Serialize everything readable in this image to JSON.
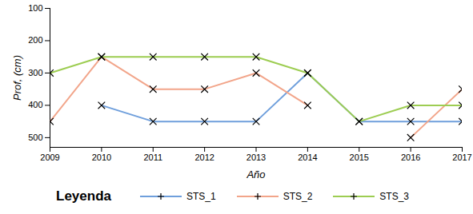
{
  "chart_data": {
    "type": "line",
    "x_label": "Año",
    "y_label": "Prof, (cm)",
    "legend_title": "Leyenda",
    "x": [
      2009,
      2010,
      2011,
      2012,
      2013,
      2014,
      2015,
      2016,
      2017
    ],
    "xlim": [
      2009,
      2017
    ],
    "xticks": [
      2009,
      2010,
      2011,
      2012,
      2013,
      2014,
      2015,
      2016,
      2017
    ],
    "ylim": [
      100,
      530
    ],
    "yticks": [
      100,
      200,
      300,
      400,
      500
    ],
    "grid": false,
    "legend": "bottom",
    "marker": "x",
    "series": [
      {
        "name": "STS_1",
        "color": "#6f9fdc",
        "values": [
          null,
          400,
          450,
          450,
          450,
          300,
          450,
          450,
          450
        ]
      },
      {
        "name": "STS_2",
        "color": "#f2a58a",
        "values": [
          450,
          250,
          350,
          350,
          300,
          400,
          null,
          500,
          350
        ]
      },
      {
        "name": "STS_3",
        "color": "#9dcd52",
        "values": [
          300,
          250,
          250,
          250,
          250,
          300,
          450,
          400,
          400
        ]
      }
    ]
  }
}
